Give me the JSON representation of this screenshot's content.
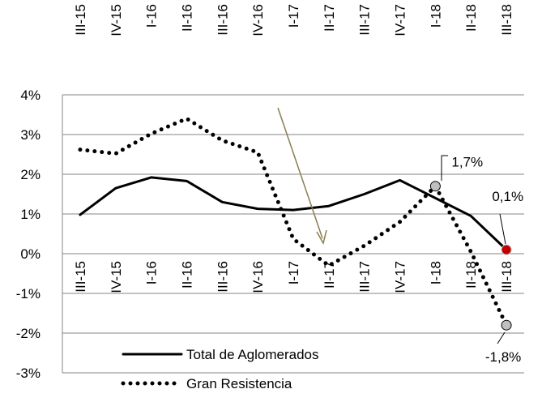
{
  "chart_data": {
    "type": "line",
    "categories": [
      "III-15",
      "IV-15",
      "I-16",
      "II-16",
      "III-16",
      "IV-16",
      "I-17",
      "II-17",
      "III-17",
      "IV-17",
      "I-18",
      "II-18",
      "III-18"
    ],
    "series": [
      {
        "name": "Total de Aglomerados",
        "color": "#000000",
        "style": "solid",
        "values": [
          0.98,
          1.65,
          1.92,
          1.83,
          1.3,
          1.13,
          1.1,
          1.2,
          1.5,
          1.85,
          1.4,
          0.95,
          0.1
        ],
        "value_labels": [
          null,
          null,
          null,
          null,
          null,
          null,
          null,
          null,
          null,
          null,
          null,
          null,
          "0,1%"
        ]
      },
      {
        "name": "Gran Resistencia",
        "color": "#000000",
        "style": "dotted",
        "values": [
          2.62,
          2.52,
          3.02,
          3.4,
          2.85,
          2.55,
          0.37,
          -0.3,
          0.2,
          0.8,
          1.7,
          0.05,
          -1.8
        ],
        "value_labels": [
          null,
          null,
          null,
          null,
          null,
          null,
          null,
          null,
          null,
          null,
          "1,7%",
          null,
          "-1,8%"
        ]
      }
    ],
    "ylim": [
      -3,
      4
    ],
    "yticks": [
      {
        "value": -3,
        "label": "-3%"
      },
      {
        "value": -2,
        "label": "-2%"
      },
      {
        "value": -1,
        "label": "-1%"
      },
      {
        "value": 0,
        "label": "0%"
      },
      {
        "value": 1,
        "label": "1%"
      },
      {
        "value": 2,
        "label": "2%"
      },
      {
        "value": 3,
        "label": "3%"
      },
      {
        "value": 4,
        "label": "4%"
      }
    ],
    "grid": true,
    "legend": "lower left"
  }
}
